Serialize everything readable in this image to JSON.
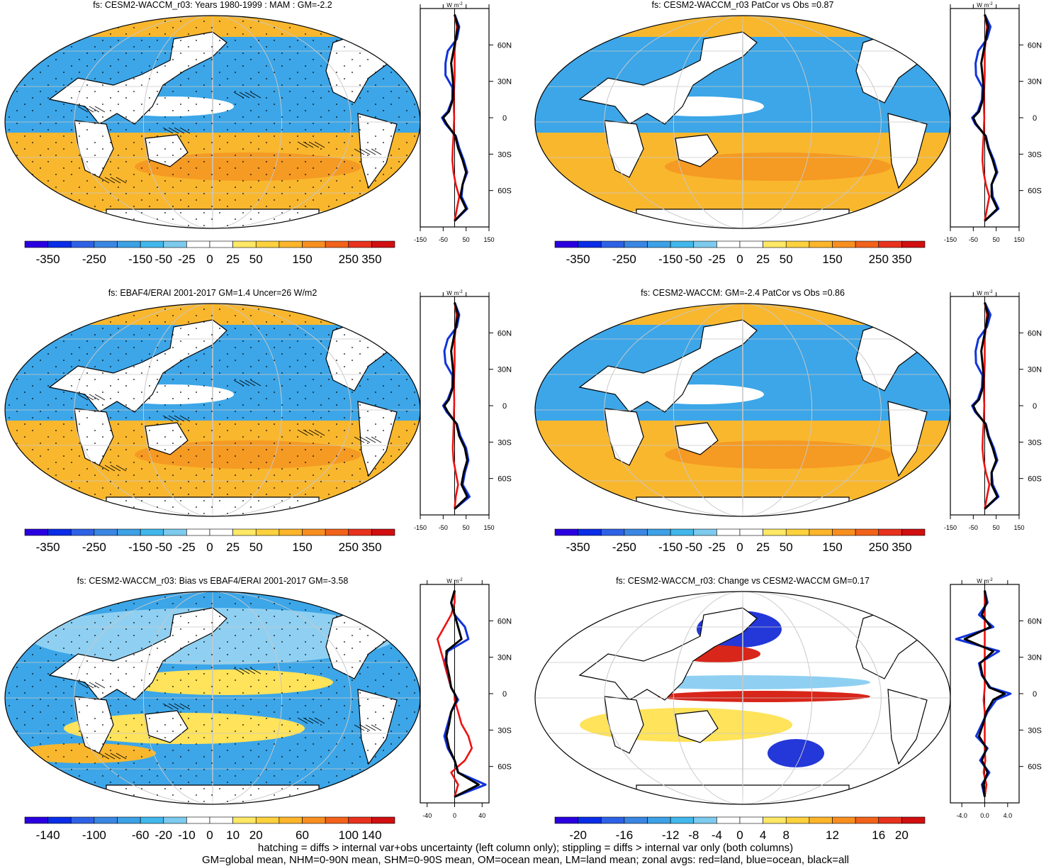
{
  "palette": [
    "#2a00e0",
    "#0a2de8",
    "#2e62e6",
    "#3a86e3",
    "#3ca1e6",
    "#41b7ec",
    "#7ccaee",
    "#ffffff",
    "#ffffff",
    "#ffe866",
    "#fcd13d",
    "#fcb52b",
    "#f98e20",
    "#f2621a",
    "#e8321d",
    "#d10f10"
  ],
  "map_colors": {
    "ocean_base": "#3ca6e8",
    "land": "#ffffff",
    "warm": "#f9b72e",
    "warm2": "#f59a22",
    "light_blue": "#8fd0f2",
    "yellow": "#ffe35a",
    "red": "#d8261a",
    "dark_blue": "#2437d8"
  },
  "line_colors": {
    "land": "#ee1111",
    "ocean": "#1133dd",
    "all": "#000000"
  },
  "panels": [
    {
      "title": "fs: CESM2-WACCM_r03: Years 1980-1999 : MAM : GM=-2.2",
      "map_style": "warm_south",
      "stipple": true,
      "hatch": true,
      "colorbar_labels": [
        "-350",
        "-250",
        "-150",
        "-50",
        "-25",
        "0",
        "25",
        "50",
        "150",
        "250",
        "350"
      ],
      "profile": {
        "unit_w": "W",
        "unit_m": "m",
        "unit_exp": "-2",
        "x_ticks": [
          "-150",
          "-50",
          "50",
          "150"
        ],
        "x_range": [
          -150,
          150
        ],
        "lat_ticks": [
          "60N",
          "30N",
          "0",
          "30S",
          "60S"
        ]
      }
    },
    {
      "title": "fs: CESM2-WACCM_r03 PatCor vs Obs =0.87",
      "map_style": "warm_south",
      "stipple": false,
      "hatch": false,
      "colorbar_labels": [
        "-350",
        "-250",
        "-150",
        "-50",
        "-25",
        "0",
        "25",
        "50",
        "150",
        "250",
        "350"
      ],
      "profile": {
        "unit_w": "W",
        "unit_m": "m",
        "unit_exp": "-2",
        "x_ticks": [
          "-150",
          "-50",
          "50",
          "150"
        ],
        "x_range": [
          -150,
          150
        ],
        "lat_ticks": [
          "60N",
          "30N",
          "0",
          "30S",
          "60S"
        ]
      }
    },
    {
      "title": "fs: EBAF4/ERAI 2001-2017 GM=1.4 Uncer=26 W/m2",
      "map_style": "warm_south",
      "stipple": true,
      "hatch": true,
      "colorbar_labels": [
        "-350",
        "-250",
        "-150",
        "-50",
        "-25",
        "0",
        "25",
        "50",
        "150",
        "250",
        "350"
      ],
      "profile": {
        "unit_w": "W",
        "unit_m": "m",
        "unit_exp": "-2",
        "x_ticks": [
          "-150",
          "-50",
          "50",
          "150"
        ],
        "x_range": [
          -150,
          150
        ],
        "lat_ticks": [
          "60N",
          "30N",
          "0",
          "30S",
          "60S"
        ]
      }
    },
    {
      "title": "fs: CESM2-WACCM: GM=-2.4 PatCor vs Obs =0.86",
      "map_style": "warm_south",
      "stipple": false,
      "hatch": false,
      "colorbar_labels": [
        "-350",
        "-250",
        "-150",
        "-50",
        "-25",
        "0",
        "25",
        "50",
        "150",
        "250",
        "350"
      ],
      "profile": {
        "unit_w": "W",
        "unit_m": "m",
        "unit_exp": "-2",
        "x_ticks": [
          "-150",
          "-50",
          "50",
          "150"
        ],
        "x_range": [
          -150,
          150
        ],
        "lat_ticks": [
          "60N",
          "30N",
          "0",
          "30S",
          "60S"
        ]
      }
    },
    {
      "title": "fs: CESM2-WACCM_r03: Bias vs EBAF4/ERAI 2001-2017 GM=-3.58",
      "map_style": "bias",
      "stipple": true,
      "hatch": true,
      "colorbar_labels": [
        "-140",
        "-100",
        "-60",
        "-20",
        "-10",
        "0",
        "10",
        "20",
        "60",
        "100",
        "140"
      ],
      "profile": {
        "unit_w": "W",
        "unit_m": "m",
        "unit_exp": "-2",
        "x_ticks": [
          "-40",
          "0",
          "40"
        ],
        "x_range": [
          -50,
          50
        ],
        "lat_ticks": [
          "60N",
          "30N",
          "0",
          "30S",
          "60S"
        ]
      }
    },
    {
      "title": "fs: CESM2-WACCM_r03: Change vs CESM2-WACCM GM=0.17",
      "map_style": "change",
      "stipple": false,
      "hatch": false,
      "colorbar_labels": [
        "-20",
        "-16",
        "-12",
        "-8",
        "-4",
        "0",
        "4",
        "8",
        "12",
        "16",
        "20"
      ],
      "profile": {
        "unit_w": "W",
        "unit_m": "m",
        "unit_exp": "-2",
        "x_ticks": [
          "-4.0",
          "0.0",
          "4.0"
        ],
        "x_range": [
          -6,
          6
        ],
        "lat_ticks": [
          "60N",
          "30N",
          "0",
          "30S",
          "60S"
        ]
      }
    }
  ],
  "chart_data": [
    {
      "type": "line",
      "title": "fs: CESM2-WACCM_r03: Years 1980-1999 : MAM : GM=-2.2 (zonal avg)",
      "xlabel": "W m-2",
      "xlim": [
        -150,
        150
      ],
      "ylim": [
        -90,
        90
      ],
      "lat": [
        -85,
        -75,
        -65,
        -55,
        -45,
        -35,
        -25,
        -15,
        -5,
        0,
        5,
        15,
        25,
        35,
        45,
        55,
        65,
        75,
        85
      ],
      "series": [
        {
          "name": "land",
          "values": [
            0,
            10,
            20,
            5,
            -5,
            -10,
            -8,
            -5,
            -3,
            -2,
            -3,
            -4,
            -2,
            0,
            0,
            0,
            5,
            10,
            0
          ]
        },
        {
          "name": "ocean",
          "values": [
            0,
            55,
            30,
            35,
            55,
            40,
            20,
            5,
            -40,
            -55,
            -30,
            -10,
            -10,
            -40,
            -40,
            -30,
            10,
            20,
            0
          ]
        },
        {
          "name": "all",
          "values": [
            0,
            50,
            25,
            35,
            50,
            35,
            15,
            3,
            -35,
            -50,
            -25,
            -8,
            -5,
            -10,
            -15,
            -5,
            5,
            15,
            0
          ]
        }
      ]
    },
    {
      "type": "line",
      "title": "fs: CESM2-WACCM_r03 PatCor vs Obs =0.87 (zonal avg)",
      "xlabel": "W m-2",
      "xlim": [
        -150,
        150
      ],
      "ylim": [
        -90,
        90
      ],
      "lat": [
        -85,
        -75,
        -65,
        -55,
        -45,
        -35,
        -25,
        -15,
        -5,
        0,
        5,
        15,
        25,
        35,
        45,
        55,
        65,
        75,
        85
      ],
      "series": [
        {
          "name": "land",
          "values": [
            0,
            10,
            20,
            5,
            -5,
            -10,
            -8,
            -5,
            -3,
            -2,
            -3,
            -4,
            -2,
            0,
            0,
            0,
            5,
            10,
            0
          ]
        },
        {
          "name": "ocean",
          "values": [
            0,
            60,
            35,
            30,
            55,
            40,
            18,
            5,
            -42,
            -55,
            -30,
            -12,
            -10,
            -38,
            -40,
            -28,
            10,
            25,
            0
          ]
        },
        {
          "name": "all",
          "values": [
            0,
            55,
            30,
            30,
            50,
            35,
            15,
            3,
            -38,
            -50,
            -25,
            -8,
            -5,
            -10,
            -15,
            -5,
            5,
            15,
            0
          ]
        }
      ]
    },
    {
      "type": "line",
      "title": "fs: EBAF4/ERAI 2001-2017 GM=1.4 Uncer=26 W/m2 (zonal avg)",
      "xlabel": "W m-2",
      "xlim": [
        -150,
        150
      ],
      "ylim": [
        -90,
        90
      ],
      "lat": [
        -85,
        -75,
        -65,
        -55,
        -45,
        -35,
        -25,
        -15,
        -5,
        0,
        5,
        15,
        25,
        35,
        45,
        55,
        65,
        75,
        85
      ],
      "series": [
        {
          "name": "land",
          "values": [
            0,
            5,
            15,
            5,
            -5,
            -8,
            -6,
            -4,
            -3,
            -2,
            -2,
            -3,
            -2,
            0,
            0,
            0,
            5,
            8,
            0
          ]
        },
        {
          "name": "ocean",
          "values": [
            0,
            65,
            35,
            45,
            60,
            50,
            25,
            10,
            -35,
            -50,
            -30,
            -10,
            -10,
            -40,
            -45,
            -30,
            10,
            20,
            0
          ]
        },
        {
          "name": "all",
          "values": [
            0,
            55,
            30,
            40,
            55,
            45,
            20,
            8,
            -30,
            -45,
            -25,
            -8,
            -5,
            -10,
            -15,
            -5,
            5,
            15,
            0
          ]
        }
      ]
    },
    {
      "type": "line",
      "title": "fs: CESM2-WACCM: GM=-2.4 PatCor vs Obs =0.86 (zonal avg)",
      "xlabel": "W m-2",
      "xlim": [
        -150,
        150
      ],
      "ylim": [
        -90,
        90
      ],
      "lat": [
        -85,
        -75,
        -65,
        -55,
        -45,
        -35,
        -25,
        -15,
        -5,
        0,
        5,
        15,
        25,
        35,
        45,
        55,
        65,
        75,
        85
      ],
      "series": [
        {
          "name": "land",
          "values": [
            0,
            10,
            20,
            5,
            -5,
            -10,
            -8,
            -5,
            -3,
            -2,
            -3,
            -4,
            -2,
            0,
            0,
            0,
            5,
            10,
            0
          ]
        },
        {
          "name": "ocean",
          "values": [
            0,
            60,
            35,
            30,
            55,
            40,
            18,
            5,
            -42,
            -55,
            -30,
            -12,
            -10,
            -38,
            -40,
            -28,
            10,
            25,
            0
          ]
        },
        {
          "name": "all",
          "values": [
            0,
            55,
            30,
            30,
            50,
            35,
            15,
            3,
            -38,
            -50,
            -25,
            -8,
            -5,
            -10,
            -15,
            -5,
            5,
            15,
            0
          ]
        }
      ]
    },
    {
      "type": "line",
      "title": "fs: CESM2-WACCM_r03: Bias vs EBAF4/ERAI 2001-2017 GM=-3.58 (zonal avg)",
      "xlabel": "W m-2",
      "xlim": [
        -50,
        50
      ],
      "ylim": [
        -90,
        90
      ],
      "lat": [
        -85,
        -75,
        -65,
        -55,
        -45,
        -35,
        -25,
        -15,
        -5,
        0,
        5,
        15,
        25,
        35,
        45,
        55,
        65,
        75,
        85
      ],
      "series": [
        {
          "name": "land",
          "values": [
            0,
            5,
            -5,
            15,
            25,
            20,
            10,
            5,
            0,
            0,
            -5,
            -10,
            -15,
            -20,
            -25,
            -15,
            -5,
            0,
            0
          ]
        },
        {
          "name": "ocean",
          "values": [
            0,
            45,
            5,
            0,
            -10,
            -15,
            -10,
            -5,
            5,
            0,
            -5,
            -10,
            -15,
            -10,
            20,
            15,
            0,
            -5,
            0
          ]
        },
        {
          "name": "all",
          "values": [
            0,
            35,
            5,
            0,
            -8,
            -12,
            -8,
            -5,
            3,
            0,
            -5,
            -8,
            -12,
            -12,
            10,
            5,
            0,
            -5,
            0
          ]
        }
      ]
    },
    {
      "type": "line",
      "title": "fs: CESM2-WACCM_r03: Change vs CESM2-WACCM GM=0.17 (zonal avg)",
      "xlabel": "W m-2",
      "xlim": [
        -6,
        6
      ],
      "ylim": [
        -90,
        90
      ],
      "lat": [
        -85,
        -75,
        -65,
        -55,
        -45,
        -35,
        -25,
        -15,
        -5,
        0,
        5,
        15,
        25,
        35,
        45,
        55,
        65,
        75,
        85
      ],
      "series": [
        {
          "name": "land",
          "values": [
            0,
            0.3,
            -0.2,
            0.1,
            0,
            0,
            0,
            0,
            -0.2,
            -0.1,
            0,
            0,
            0,
            0,
            0,
            0,
            0,
            0,
            0
          ]
        },
        {
          "name": "ocean",
          "values": [
            0,
            -0.5,
            0.8,
            -0.8,
            0.5,
            -1.5,
            -0.5,
            0.5,
            2.0,
            4.5,
            1.0,
            -0.5,
            -1.0,
            2.5,
            -5.0,
            1.5,
            -1.0,
            0.5,
            0
          ]
        },
        {
          "name": "all",
          "values": [
            0,
            -0.3,
            0.5,
            -0.5,
            0.3,
            -1.0,
            -0.3,
            0.3,
            1.5,
            3.5,
            0.8,
            -0.4,
            -0.8,
            1.5,
            -3.5,
            1.0,
            -0.5,
            0.3,
            0
          ]
        }
      ]
    }
  ],
  "footer": {
    "line1": "hatching = diffs > internal var+obs uncertainty (left column only); stippling = diffs > internal var only (both columns)",
    "line2": "GM=global mean, NHM=0-90N mean, SHM=0-90S mean, OM=ocean mean, LM=land mean; zonal avgs: red=land, blue=ocean, black=all"
  }
}
